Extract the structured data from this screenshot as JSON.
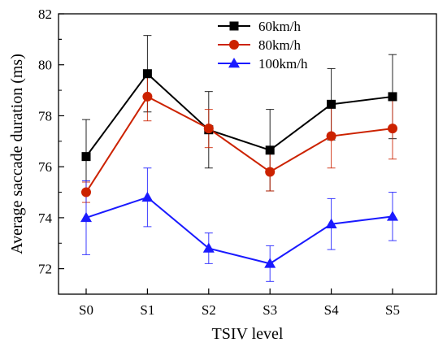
{
  "chart_data": {
    "type": "line",
    "xlabel": "TSIV level",
    "ylabel": "Average saccade duration (ms)",
    "categories": [
      "S0",
      "S1",
      "S2",
      "S3",
      "S4",
      "S5"
    ],
    "ylim": [
      71,
      82
    ],
    "yticks": [
      "72",
      "74",
      "76",
      "78",
      "80",
      "82"
    ],
    "legend_position": "top-right",
    "series": [
      {
        "name": "60km/h",
        "color": "#000000",
        "marker": "square",
        "values": [
          76.4,
          79.65,
          77.45,
          76.65,
          78.45,
          78.75
        ],
        "error": [
          1.45,
          1.5,
          1.5,
          1.6,
          1.4,
          1.65
        ]
      },
      {
        "name": "80km/h",
        "color": "#cc2200",
        "marker": "circle",
        "values": [
          75.0,
          78.75,
          77.5,
          75.8,
          77.2,
          77.5
        ],
        "error": [
          0.4,
          0.95,
          0.75,
          0.75,
          1.25,
          1.2
        ]
      },
      {
        "name": "100km/h",
        "color": "#1a1aff",
        "marker": "triangle",
        "values": [
          74.0,
          74.8,
          72.8,
          72.2,
          73.75,
          74.05
        ],
        "error": [
          1.45,
          1.15,
          0.6,
          0.7,
          1.0,
          0.95
        ]
      }
    ]
  }
}
